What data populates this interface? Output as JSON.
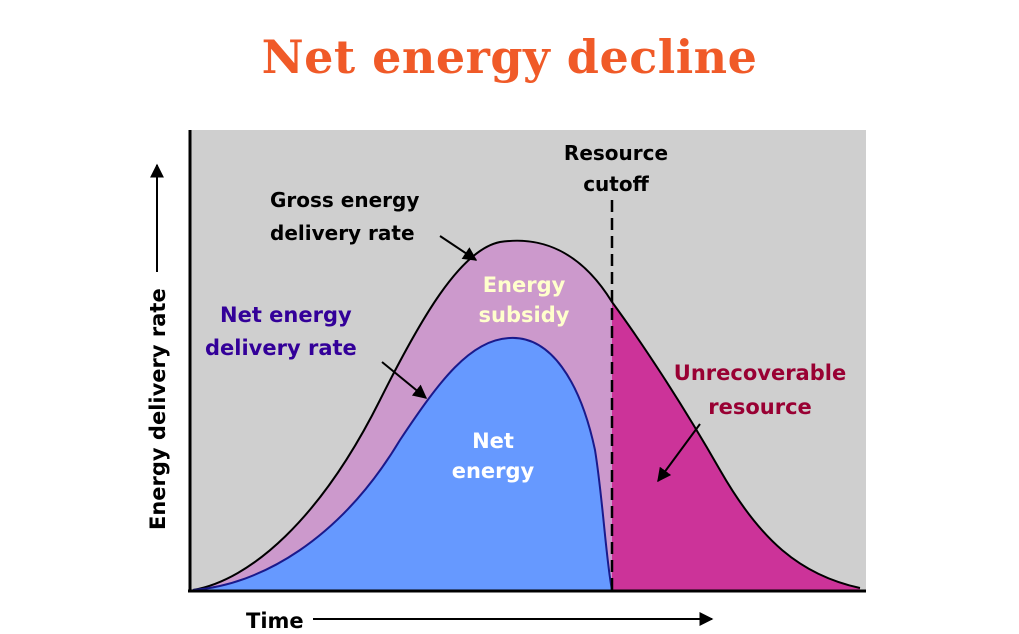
{
  "title": "Net energy decline",
  "axes": {
    "x_label": "Time",
    "y_label": "Energy delivery rate"
  },
  "labels": {
    "resource_cutoff_line1": "Resource",
    "resource_cutoff_line2": "cutoff",
    "gross_line1": "Gross energy",
    "gross_line2": "delivery rate",
    "net_rate_line1": "Net energy",
    "net_rate_line2": "delivery rate",
    "subsidy_line1": "Energy",
    "subsidy_line2": "subsidy",
    "net_energy_line1": "Net",
    "net_energy_line2": "energy",
    "unrecoverable_line1": "Unrecoverable",
    "unrecoverable_line2": "resource"
  },
  "colors": {
    "title": "#f05a28",
    "plot_background": "#cfcfcf",
    "energy_subsidy": "#cc99cc",
    "net_energy": "#6699ff",
    "unrecoverable": "#cc3399",
    "net_rate_label": "#330099",
    "unrecoverable_label": "#990033",
    "subsidy_label": "#ffffcc",
    "net_energy_label": "#ffffff"
  }
}
